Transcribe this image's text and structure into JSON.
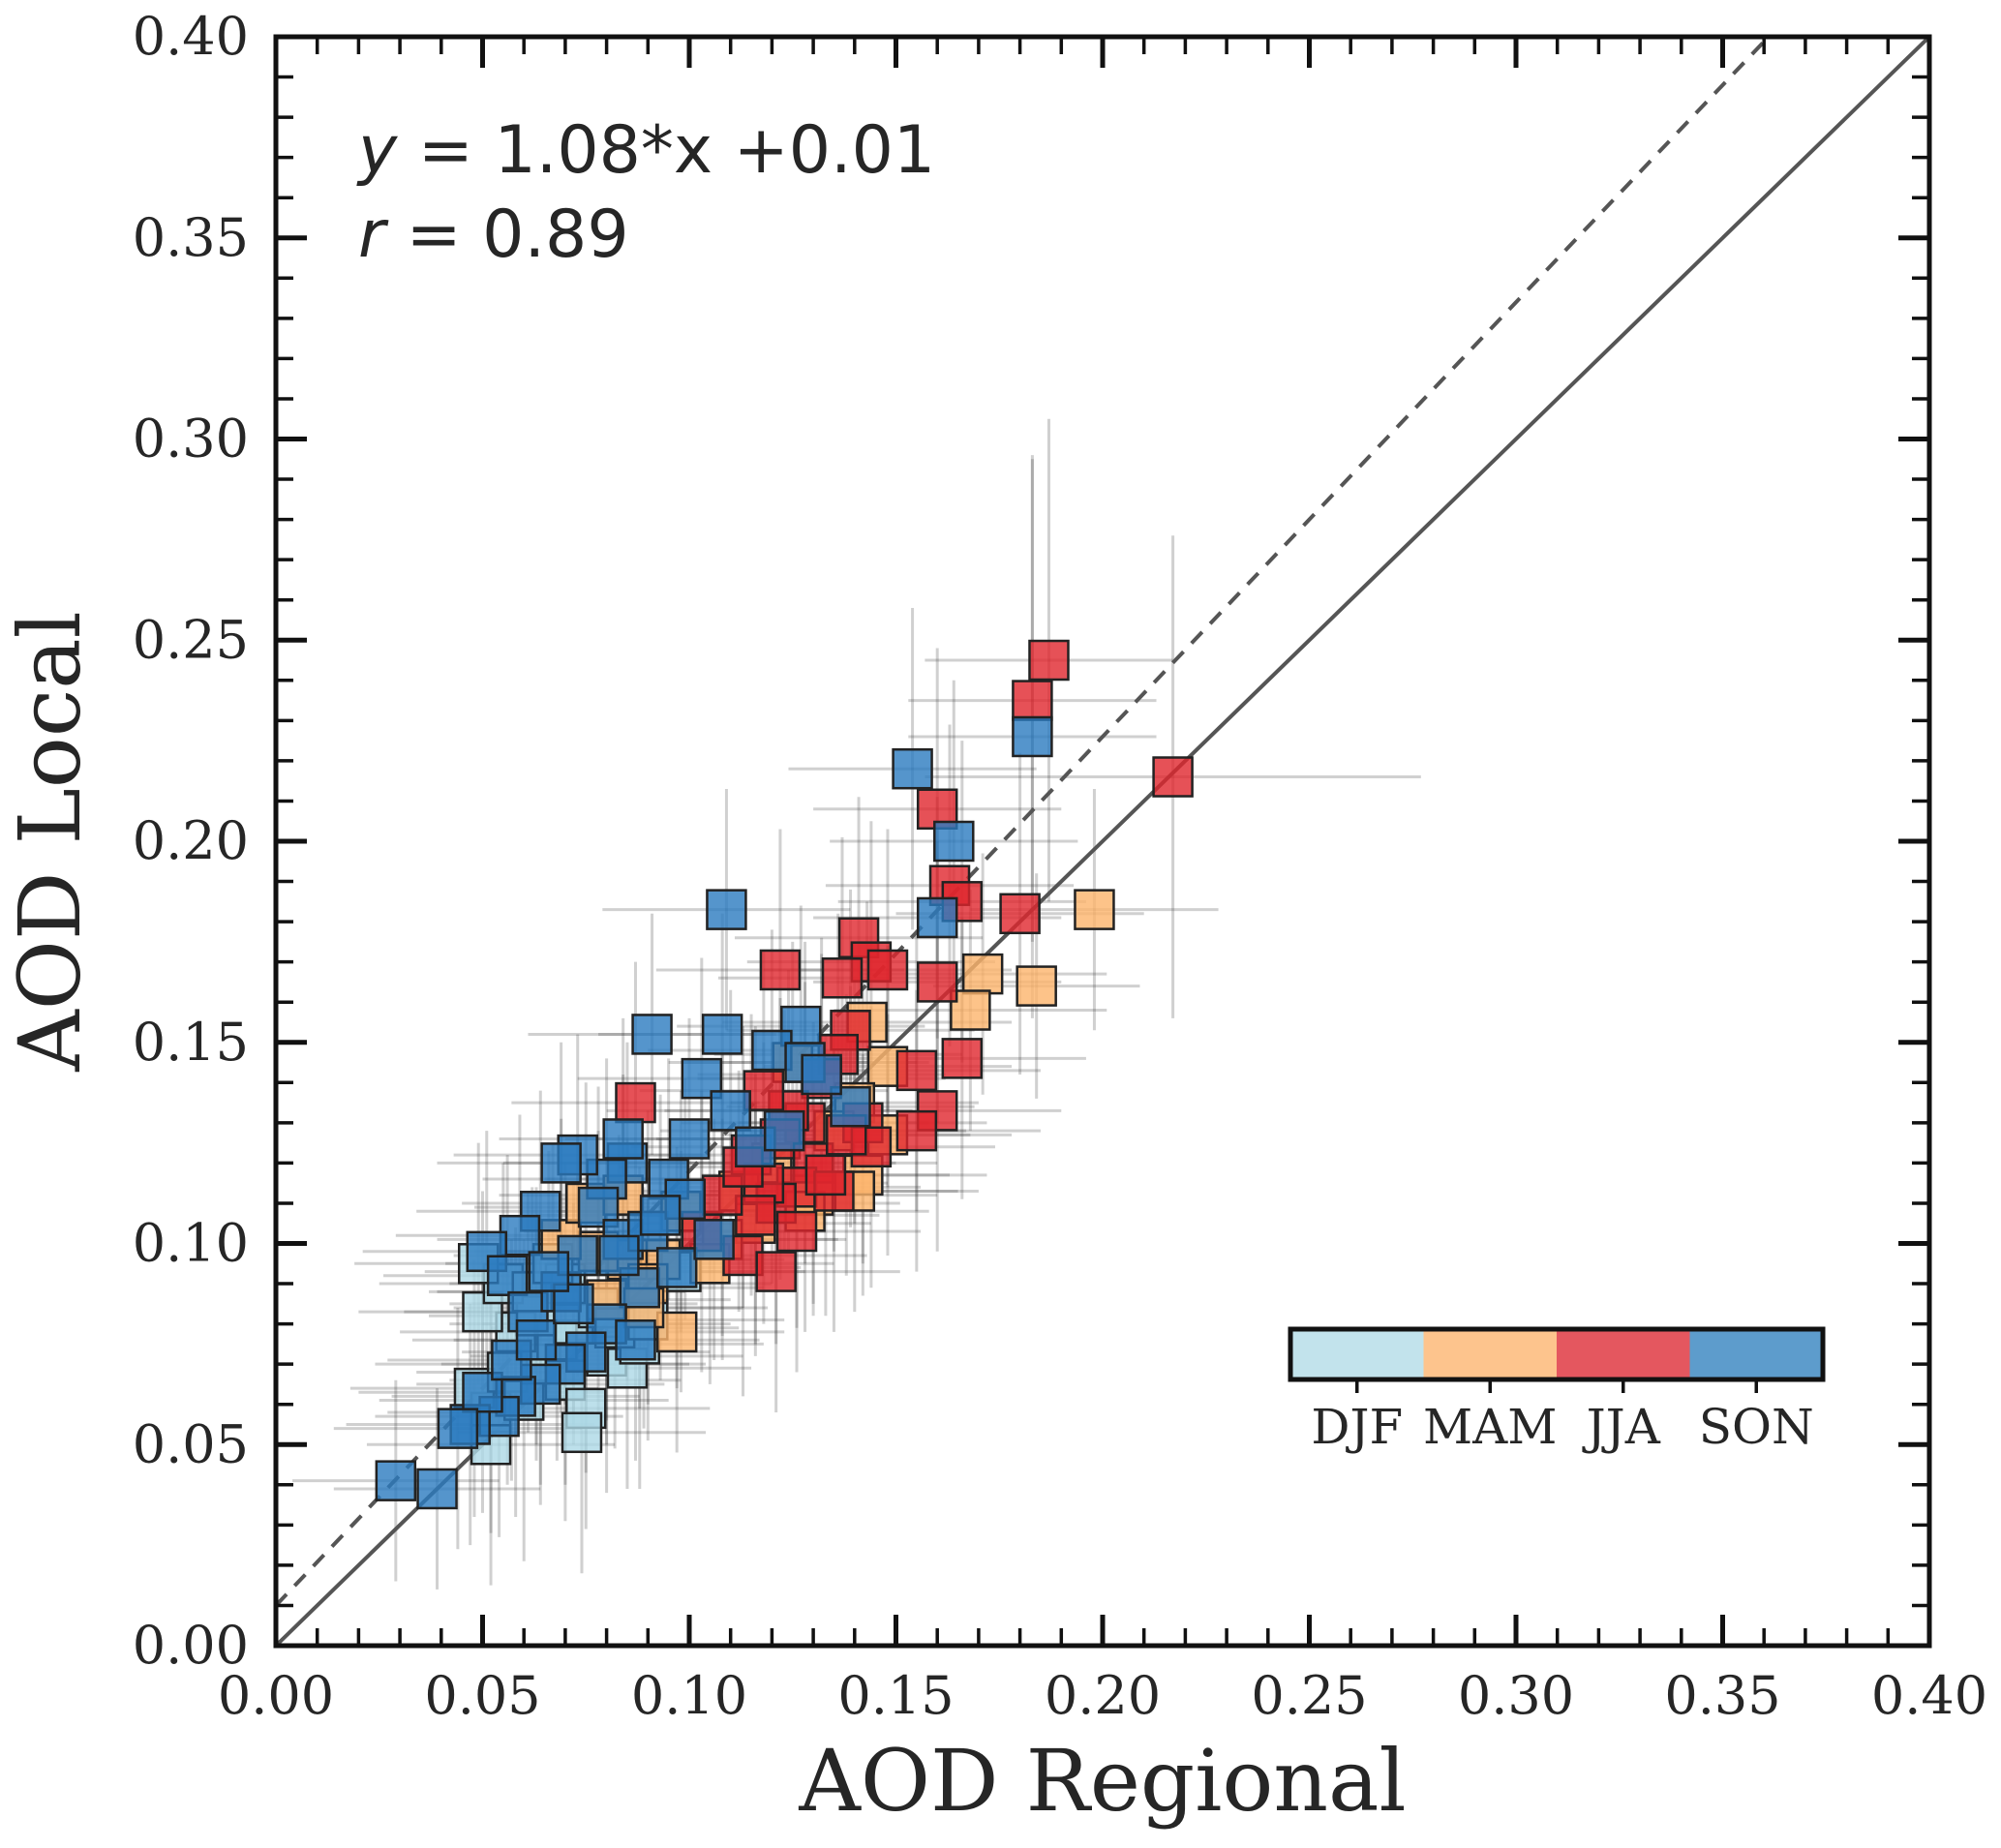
{
  "chart_data": {
    "type": "scatter",
    "xlabel": "AOD Regional",
    "ylabel": "AOD Local",
    "xlim": [
      0,
      0.4
    ],
    "ylim": [
      0,
      0.4
    ],
    "major_ticks": [
      "0.00",
      "0.05",
      "0.10",
      "0.15",
      "0.20",
      "0.25",
      "0.30",
      "0.35",
      "0.40"
    ],
    "minor_tick_step": 0.01,
    "grid": false,
    "annotations": {
      "fit_text": "y = 1.08*x +0.01",
      "fit_prefix": "y",
      "fit_rest": " = 1.08*x +0.01",
      "r_text": "r = 0.89",
      "r_prefix": "r",
      "r_rest": " = 0.89"
    },
    "lines": [
      {
        "kind": "one-to-one",
        "style": "solid",
        "slope": 1.0,
        "intercept": 0.0,
        "color": "#555555"
      },
      {
        "kind": "fit",
        "style": "dashed",
        "slope": 1.08,
        "intercept": 0.01,
        "color": "#555555"
      }
    ],
    "colorbar": {
      "placement": "lower-right",
      "labels": [
        "DJF",
        "MAM",
        "JJA",
        "SON"
      ],
      "colors": [
        "#c2e3ec",
        "#fdc48d",
        "#e4575f",
        "#5d9ccc"
      ]
    },
    "seasons": {
      "DJF": {
        "color": "#add8e6"
      },
      "MAM": {
        "color": "#fdb46b"
      },
      "JJA": {
        "color": "#e0252d"
      },
      "SON": {
        "color": "#2a7bbf"
      }
    },
    "series": [
      {
        "name": "DJF",
        "points": [
          [
            0.052,
            0.058
          ],
          [
            0.048,
            0.064
          ],
          [
            0.056,
            0.068
          ],
          [
            0.06,
            0.061
          ],
          [
            0.064,
            0.07
          ],
          [
            0.07,
            0.066
          ],
          [
            0.075,
            0.059
          ],
          [
            0.068,
            0.076
          ],
          [
            0.08,
            0.072
          ],
          [
            0.085,
            0.069
          ],
          [
            0.058,
            0.078
          ],
          [
            0.05,
            0.083
          ],
          [
            0.063,
            0.082
          ],
          [
            0.072,
            0.08
          ],
          [
            0.078,
            0.084
          ],
          [
            0.088,
            0.075
          ],
          [
            0.07,
            0.09
          ],
          [
            0.055,
            0.09
          ],
          [
            0.062,
            0.088
          ],
          [
            0.082,
            0.079
          ],
          [
            0.098,
            0.093
          ],
          [
            0.09,
            0.081
          ],
          [
            0.074,
            0.053
          ],
          [
            0.067,
            0.095
          ],
          [
            0.049,
            0.095
          ],
          [
            0.052,
            0.05
          ]
        ],
        "x_err": [
          0.025,
          0.03,
          0.022,
          0.035,
          0.04,
          0.028,
          0.03,
          0.025,
          0.033,
          0.03,
          0.028,
          0.03,
          0.026,
          0.03,
          0.035,
          0.03,
          0.028,
          0.03,
          0.025,
          0.03,
          0.03,
          0.033,
          0.03,
          0.026,
          0.03,
          0.03
        ],
        "y_err": [
          0.03,
          0.032,
          0.028,
          0.04,
          0.03,
          0.035,
          0.03,
          0.03,
          0.034,
          0.03,
          0.026,
          0.03,
          0.032,
          0.03,
          0.028,
          0.036,
          0.03,
          0.03,
          0.026,
          0.03,
          0.03,
          0.03,
          0.035,
          0.03,
          0.03,
          0.035
        ]
      },
      {
        "name": "MAM",
        "points": [
          [
            0.198,
            0.183
          ],
          [
            0.184,
            0.164
          ],
          [
            0.171,
            0.167
          ],
          [
            0.168,
            0.158
          ],
          [
            0.143,
            0.155
          ],
          [
            0.148,
            0.144
          ],
          [
            0.14,
            0.135
          ],
          [
            0.135,
            0.128
          ],
          [
            0.142,
            0.117
          ],
          [
            0.14,
            0.113
          ],
          [
            0.13,
            0.112
          ],
          [
            0.12,
            0.12
          ],
          [
            0.112,
            0.113
          ],
          [
            0.116,
            0.105
          ],
          [
            0.108,
            0.101
          ],
          [
            0.098,
            0.108
          ],
          [
            0.093,
            0.096
          ],
          [
            0.085,
            0.096
          ],
          [
            0.078,
            0.098
          ],
          [
            0.097,
            0.078
          ],
          [
            0.09,
            0.09
          ],
          [
            0.08,
            0.086
          ],
          [
            0.069,
            0.101
          ],
          [
            0.105,
            0.095
          ],
          [
            0.075,
            0.11
          ],
          [
            0.084,
            0.112
          ],
          [
            0.128,
            0.108
          ],
          [
            0.125,
            0.145
          ],
          [
            0.148,
            0.127
          ],
          [
            0.089,
            0.084
          ]
        ],
        "x_err": [
          0.03,
          0.025,
          0.03,
          0.033,
          0.035,
          0.03,
          0.03,
          0.032,
          0.03,
          0.03,
          0.03,
          0.03,
          0.03,
          0.028,
          0.03,
          0.03,
          0.03,
          0.03,
          0.03,
          0.026,
          0.03,
          0.03,
          0.03,
          0.03,
          0.03,
          0.03,
          0.03,
          0.03,
          0.03,
          0.03
        ],
        "y_err": [
          0.03,
          0.028,
          0.03,
          0.03,
          0.03,
          0.03,
          0.03,
          0.03,
          0.03,
          0.03,
          0.03,
          0.03,
          0.03,
          0.03,
          0.03,
          0.03,
          0.03,
          0.03,
          0.03,
          0.03,
          0.03,
          0.03,
          0.03,
          0.03,
          0.03,
          0.03,
          0.03,
          0.03,
          0.03,
          0.03
        ]
      },
      {
        "name": "JJA",
        "points": [
          [
            0.187,
            0.245
          ],
          [
            0.183,
            0.235
          ],
          [
            0.217,
            0.216
          ],
          [
            0.16,
            0.208
          ],
          [
            0.163,
            0.189
          ],
          [
            0.166,
            0.185
          ],
          [
            0.18,
            0.182
          ],
          [
            0.141,
            0.176
          ],
          [
            0.144,
            0.17
          ],
          [
            0.148,
            0.168
          ],
          [
            0.137,
            0.166
          ],
          [
            0.122,
            0.168
          ],
          [
            0.16,
            0.165
          ],
          [
            0.166,
            0.146
          ],
          [
            0.155,
            0.143
          ],
          [
            0.139,
            0.153
          ],
          [
            0.136,
            0.147
          ],
          [
            0.132,
            0.141
          ],
          [
            0.16,
            0.133
          ],
          [
            0.155,
            0.128
          ],
          [
            0.142,
            0.13
          ],
          [
            0.144,
            0.124
          ],
          [
            0.128,
            0.13
          ],
          [
            0.124,
            0.133
          ],
          [
            0.118,
            0.138
          ],
          [
            0.122,
            0.126
          ],
          [
            0.115,
            0.122
          ],
          [
            0.13,
            0.12
          ],
          [
            0.126,
            0.114
          ],
          [
            0.121,
            0.11
          ],
          [
            0.118,
            0.115
          ],
          [
            0.135,
            0.113
          ],
          [
            0.116,
            0.107
          ],
          [
            0.126,
            0.103
          ],
          [
            0.087,
            0.135
          ],
          [
            0.113,
            0.097
          ],
          [
            0.103,
            0.103
          ],
          [
            0.108,
            0.112
          ],
          [
            0.138,
            0.127
          ],
          [
            0.133,
            0.117
          ],
          [
            0.113,
            0.119
          ],
          [
            0.121,
            0.093
          ]
        ],
        "x_err": [
          0.03,
          0.03,
          0.06,
          0.03,
          0.03,
          0.03,
          0.03,
          0.03,
          0.03,
          0.03,
          0.03,
          0.03,
          0.03,
          0.03,
          0.03,
          0.03,
          0.03,
          0.03,
          0.03,
          0.03,
          0.03,
          0.03,
          0.03,
          0.03,
          0.03,
          0.03,
          0.03,
          0.03,
          0.03,
          0.03,
          0.03,
          0.03,
          0.03,
          0.03,
          0.03,
          0.03,
          0.03,
          0.03,
          0.03,
          0.03,
          0.03,
          0.03
        ],
        "y_err": [
          0.06,
          0.06,
          0.06,
          0.04,
          0.04,
          0.04,
          0.04,
          0.035,
          0.035,
          0.035,
          0.035,
          0.035,
          0.035,
          0.035,
          0.035,
          0.035,
          0.035,
          0.035,
          0.035,
          0.035,
          0.035,
          0.035,
          0.035,
          0.035,
          0.035,
          0.035,
          0.035,
          0.035,
          0.035,
          0.035,
          0.035,
          0.035,
          0.035,
          0.035,
          0.035,
          0.035,
          0.035,
          0.035,
          0.035,
          0.035,
          0.035,
          0.035
        ]
      },
      {
        "name": "SON",
        "points": [
          [
            0.183,
            0.226
          ],
          [
            0.154,
            0.218
          ],
          [
            0.164,
            0.2
          ],
          [
            0.109,
            0.183
          ],
          [
            0.16,
            0.181
          ],
          [
            0.091,
            0.152
          ],
          [
            0.108,
            0.152
          ],
          [
            0.127,
            0.154
          ],
          [
            0.12,
            0.148
          ],
          [
            0.103,
            0.141
          ],
          [
            0.128,
            0.145
          ],
          [
            0.139,
            0.134
          ],
          [
            0.132,
            0.142
          ],
          [
            0.11,
            0.133
          ],
          [
            0.1,
            0.126
          ],
          [
            0.085,
            0.12
          ],
          [
            0.08,
            0.116
          ],
          [
            0.073,
            0.122
          ],
          [
            0.069,
            0.12
          ],
          [
            0.064,
            0.108
          ],
          [
            0.059,
            0.102
          ],
          [
            0.051,
            0.098
          ],
          [
            0.056,
            0.092
          ],
          [
            0.061,
            0.083
          ],
          [
            0.069,
            0.088
          ],
          [
            0.073,
            0.097
          ],
          [
            0.078,
            0.109
          ],
          [
            0.084,
            0.101
          ],
          [
            0.09,
            0.103
          ],
          [
            0.095,
            0.116
          ],
          [
            0.099,
            0.111
          ],
          [
            0.088,
            0.089
          ],
          [
            0.08,
            0.08
          ],
          [
            0.075,
            0.073
          ],
          [
            0.07,
            0.07
          ],
          [
            0.064,
            0.065
          ],
          [
            0.058,
            0.062
          ],
          [
            0.054,
            0.057
          ],
          [
            0.047,
            0.055
          ],
          [
            0.05,
            0.063
          ],
          [
            0.057,
            0.071
          ],
          [
            0.063,
            0.076
          ],
          [
            0.087,
            0.076
          ],
          [
            0.083,
            0.097
          ],
          [
            0.072,
            0.085
          ],
          [
            0.029,
            0.041
          ],
          [
            0.039,
            0.039
          ],
          [
            0.044,
            0.054
          ],
          [
            0.097,
            0.094
          ],
          [
            0.106,
            0.101
          ],
          [
            0.116,
            0.124
          ],
          [
            0.123,
            0.128
          ],
          [
            0.084,
            0.126
          ],
          [
            0.066,
            0.093
          ],
          [
            0.093,
            0.107
          ]
        ],
        "x_err": [
          0.03,
          0.03,
          0.03,
          0.03,
          0.03,
          0.03,
          0.03,
          0.03,
          0.03,
          0.03,
          0.03,
          0.03,
          0.03,
          0.03,
          0.03,
          0.03,
          0.03,
          0.03,
          0.03,
          0.03,
          0.03,
          0.03,
          0.03,
          0.03,
          0.03,
          0.03,
          0.03,
          0.03,
          0.03,
          0.03,
          0.03,
          0.03,
          0.03,
          0.03,
          0.03,
          0.03,
          0.03,
          0.03,
          0.03,
          0.03,
          0.03,
          0.03,
          0.03,
          0.03,
          0.03,
          0.025,
          0.025,
          0.03,
          0.03,
          0.03,
          0.03,
          0.03,
          0.03,
          0.03,
          0.03
        ],
        "y_err": [
          0.07,
          0.04,
          0.04,
          0.03,
          0.03,
          0.03,
          0.03,
          0.03,
          0.03,
          0.03,
          0.03,
          0.03,
          0.03,
          0.03,
          0.03,
          0.03,
          0.03,
          0.03,
          0.03,
          0.03,
          0.03,
          0.03,
          0.03,
          0.03,
          0.03,
          0.03,
          0.03,
          0.03,
          0.03,
          0.03,
          0.03,
          0.03,
          0.03,
          0.03,
          0.03,
          0.03,
          0.03,
          0.03,
          0.03,
          0.03,
          0.03,
          0.03,
          0.03,
          0.03,
          0.03,
          0.025,
          0.025,
          0.03,
          0.03,
          0.03,
          0.03,
          0.03,
          0.03,
          0.03,
          0.03
        ]
      }
    ]
  }
}
